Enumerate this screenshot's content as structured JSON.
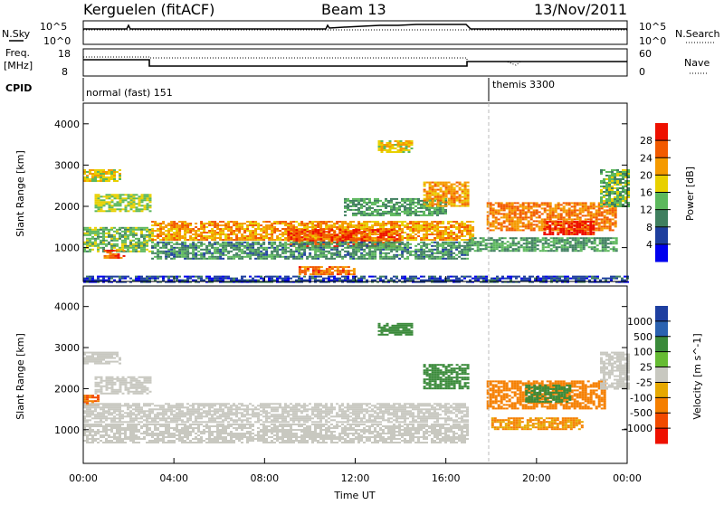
{
  "header": {
    "station": "Kerguelen (fitACF)",
    "beam": "Beam 13",
    "date": "13/Nov/2011"
  },
  "nsky_panel": {
    "left_label": "N.Sky",
    "right_label": "N.Search",
    "ticks": [
      "10^5",
      "10^0"
    ]
  },
  "freq_panel": {
    "left_label_line1": "Freq.",
    "left_label_line2": "[MHz]",
    "right_label": "Nave",
    "left_ticks": [
      "18",
      "8"
    ],
    "right_ticks": [
      "60",
      "0"
    ]
  },
  "cpid_panel": {
    "label": "CPID",
    "mode1": "normal (fast) 151",
    "mode2": "themis 3300"
  },
  "colors": {
    "power_scale": [
      "#0000ee",
      "#1e3f9e",
      "#3f7f5f",
      "#5cb85c",
      "#e8d000",
      "#f59a00",
      "#f25a00",
      "#ee1000"
    ],
    "velocity_scale": [
      "#1e3fa0",
      "#2a62b0",
      "#3a8a3a",
      "#66bb33",
      "#c8c8c0",
      "#e6a800",
      "#f57f00",
      "#f24a00",
      "#ee1000"
    ]
  },
  "chart_data": [
    {
      "type": "heatmap",
      "panel": "power",
      "ylabel": "Slant Range [km]",
      "ylim": [
        180,
        4500
      ],
      "yticks": [
        "1000",
        "2000",
        "3000",
        "4000"
      ],
      "xlim_hours": [
        0,
        24
      ],
      "colorbar": {
        "label": "Power [dB]",
        "ticks": [
          "4",
          "8",
          "12",
          "16",
          "20",
          "24",
          "28"
        ],
        "range": [
          0,
          32
        ]
      },
      "regions": [
        {
          "t0": 0.0,
          "t1": 1.6,
          "r0": 2600,
          "r1": 2900,
          "value": 18
        },
        {
          "t0": 0.5,
          "t1": 3.0,
          "r0": 1900,
          "r1": 2300,
          "value": 16
        },
        {
          "t0": 0.0,
          "t1": 3.0,
          "r0": 900,
          "r1": 1500,
          "value": 14
        },
        {
          "t0": 0.9,
          "t1": 1.8,
          "r0": 750,
          "r1": 950,
          "value": 26
        },
        {
          "t0": 3.0,
          "t1": 17.2,
          "r0": 1200,
          "r1": 1650,
          "value": 22
        },
        {
          "t0": 9.0,
          "t1": 14.0,
          "r0": 1050,
          "r1": 1450,
          "value": 27
        },
        {
          "t0": 3.0,
          "t1": 17.0,
          "r0": 750,
          "r1": 1150,
          "value": 11
        },
        {
          "t0": 9.5,
          "t1": 12.0,
          "r0": 350,
          "r1": 550,
          "value": 25
        },
        {
          "t0": 11.5,
          "t1": 16.0,
          "r0": 1800,
          "r1": 2200,
          "value": 12
        },
        {
          "t0": 15.0,
          "t1": 17.0,
          "r0": 2000,
          "r1": 2600,
          "value": 22
        },
        {
          "t0": 13.0,
          "t1": 14.5,
          "r0": 3300,
          "r1": 3600,
          "value": 18
        },
        {
          "t0": 17.8,
          "t1": 23.5,
          "r0": 1400,
          "r1": 2100,
          "value": 24
        },
        {
          "t0": 20.3,
          "t1": 22.5,
          "r0": 1300,
          "r1": 1650,
          "value": 30
        },
        {
          "t0": 17.0,
          "t1": 23.5,
          "r0": 900,
          "r1": 1250,
          "value": 12
        },
        {
          "t0": 22.8,
          "t1": 24.0,
          "r0": 2000,
          "r1": 2900,
          "value": 14
        },
        {
          "t0": 0.0,
          "t1": 24.0,
          "r0": 180,
          "r1": 320,
          "value": 6
        }
      ]
    },
    {
      "type": "heatmap",
      "panel": "velocity",
      "ylabel": "Slant Range [km]",
      "xlabel": "Time UT",
      "ylim": [
        180,
        4500
      ],
      "yticks": [
        "1000",
        "2000",
        "3000",
        "4000"
      ],
      "xticks": [
        "00:00",
        "04:00",
        "08:00",
        "12:00",
        "16:00",
        "20:00",
        "00:00"
      ],
      "xlim_hours": [
        0,
        24
      ],
      "colorbar": {
        "label": "Velocity [m s^-1]",
        "ticks": [
          "1000",
          "500",
          "100",
          "25",
          "-25",
          "-100",
          "-500",
          "-1000"
        ]
      },
      "regions": [
        {
          "t0": 0.0,
          "t1": 1.6,
          "r0": 2600,
          "r1": 2900,
          "value": 0
        },
        {
          "t0": 0.5,
          "t1": 3.0,
          "r0": 1900,
          "r1": 2300,
          "value": 0
        },
        {
          "t0": 0.0,
          "t1": 0.6,
          "r0": 1600,
          "r1": 1850,
          "value": -300
        },
        {
          "t0": 0.0,
          "t1": 17.0,
          "r0": 1200,
          "r1": 1650,
          "value": 0
        },
        {
          "t0": 0.0,
          "t1": 17.0,
          "r0": 700,
          "r1": 1150,
          "value": 0
        },
        {
          "t0": 15.0,
          "t1": 17.0,
          "r0": 2000,
          "r1": 2600,
          "value": 200
        },
        {
          "t0": 13.0,
          "t1": 14.5,
          "r0": 3300,
          "r1": 3600,
          "value": 200
        },
        {
          "t0": 17.8,
          "t1": 23.0,
          "r0": 1500,
          "r1": 2200,
          "value": -150
        },
        {
          "t0": 19.5,
          "t1": 21.5,
          "r0": 1700,
          "r1": 2100,
          "value": 150
        },
        {
          "t0": 18.0,
          "t1": 22.0,
          "r0": 1000,
          "r1": 1300,
          "value": -60
        },
        {
          "t0": 22.8,
          "t1": 24.0,
          "r0": 2000,
          "r1": 2900,
          "value": 0
        }
      ]
    }
  ],
  "axes": {
    "xlabel": "Time UT",
    "xticks": [
      "00:00",
      "04:00",
      "08:00",
      "12:00",
      "16:00",
      "20:00",
      "00:00"
    ]
  }
}
